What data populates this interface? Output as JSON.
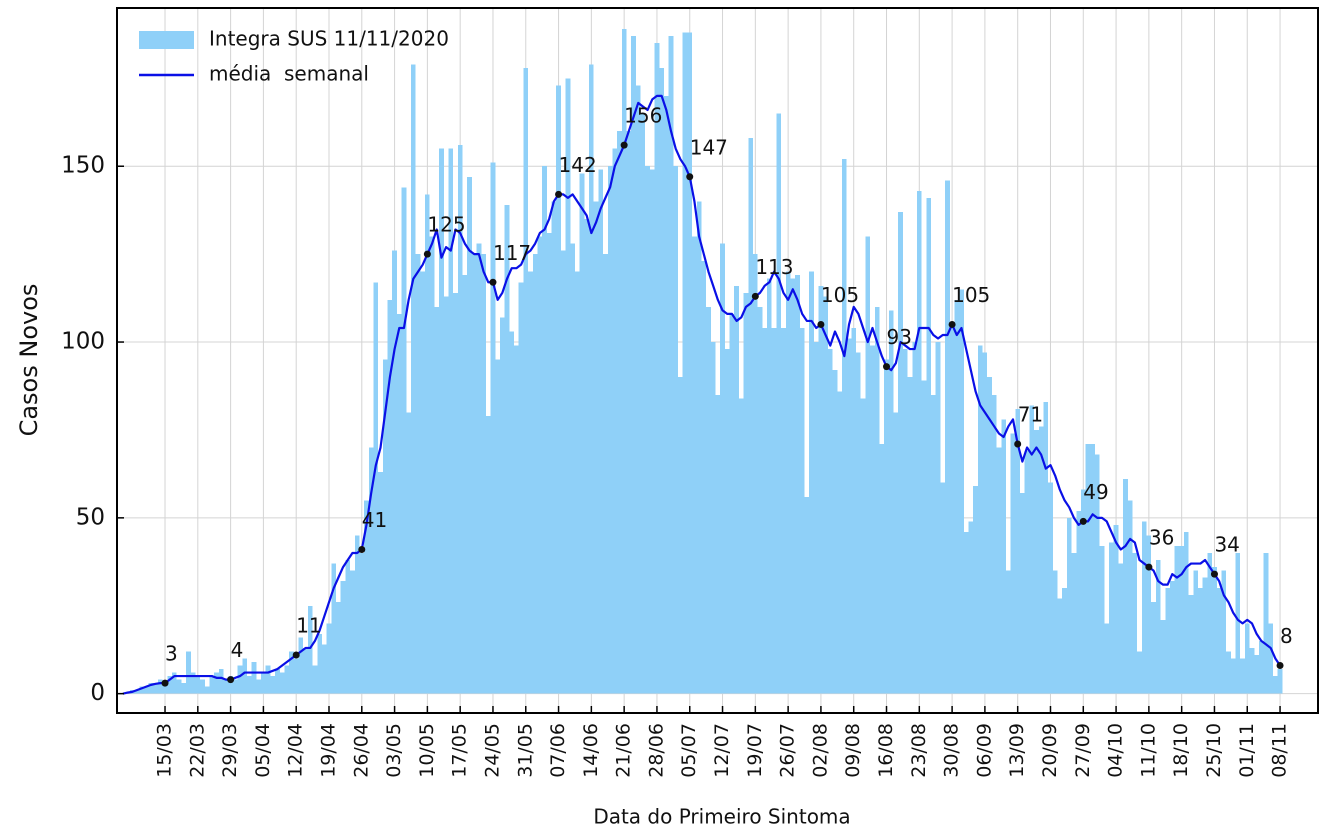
{
  "chart_data": {
    "type": "bar",
    "xlabel": "Data do Primeiro Sintoma",
    "ylabel": "Casos Novos",
    "legend": "upper left",
    "grid": true,
    "xlim": [
      64.75,
      321.1
    ],
    "ylim": [
      -5.5,
      195
    ],
    "yticks": [
      0,
      50,
      100,
      150
    ],
    "xticks": [
      {
        "value": 75,
        "label": "15/03"
      },
      {
        "value": 82,
        "label": "22/03"
      },
      {
        "value": 89,
        "label": "29/03"
      },
      {
        "value": 96,
        "label": "05/04"
      },
      {
        "value": 103,
        "label": "12/04"
      },
      {
        "value": 110,
        "label": "19/04"
      },
      {
        "value": 117,
        "label": "26/04"
      },
      {
        "value": 124,
        "label": "03/05"
      },
      {
        "value": 131,
        "label": "10/05"
      },
      {
        "value": 138,
        "label": "17/05"
      },
      {
        "value": 145,
        "label": "24/05"
      },
      {
        "value": 152,
        "label": "31/05"
      },
      {
        "value": 159,
        "label": "07/06"
      },
      {
        "value": 166,
        "label": "14/06"
      },
      {
        "value": 173,
        "label": "21/06"
      },
      {
        "value": 180,
        "label": "28/06"
      },
      {
        "value": 187,
        "label": "05/07"
      },
      {
        "value": 194,
        "label": "12/07"
      },
      {
        "value": 201,
        "label": "19/07"
      },
      {
        "value": 208,
        "label": "26/07"
      },
      {
        "value": 215,
        "label": "02/08"
      },
      {
        "value": 222,
        "label": "09/08"
      },
      {
        "value": 229,
        "label": "16/08"
      },
      {
        "value": 236,
        "label": "23/08"
      },
      {
        "value": 243,
        "label": "30/08"
      },
      {
        "value": 250,
        "label": "06/09"
      },
      {
        "value": 257,
        "label": "13/09"
      },
      {
        "value": 264,
        "label": "20/09"
      },
      {
        "value": 271,
        "label": "27/09"
      },
      {
        "value": 278,
        "label": "04/10"
      },
      {
        "value": 285,
        "label": "11/10"
      },
      {
        "value": 292,
        "label": "18/10"
      },
      {
        "value": 299,
        "label": "25/10"
      },
      {
        "value": 306,
        "label": "01/11"
      },
      {
        "value": 313,
        "label": "08/11"
      }
    ],
    "x": [
      66,
      67,
      68,
      69,
      70,
      71,
      72,
      73,
      74,
      75,
      76,
      77,
      78,
      79,
      80,
      81,
      82,
      83,
      84,
      85,
      86,
      87,
      88,
      89,
      90,
      91,
      92,
      93,
      94,
      95,
      96,
      97,
      98,
      99,
      100,
      101,
      102,
      103,
      104,
      105,
      106,
      107,
      108,
      109,
      110,
      111,
      112,
      113,
      114,
      115,
      116,
      117,
      118,
      119,
      120,
      121,
      122,
      123,
      124,
      125,
      126,
      127,
      128,
      129,
      130,
      131,
      132,
      133,
      134,
      135,
      136,
      137,
      138,
      139,
      140,
      141,
      142,
      143,
      144,
      145,
      146,
      147,
      148,
      149,
      150,
      151,
      152,
      153,
      154,
      155,
      156,
      157,
      158,
      159,
      160,
      161,
      162,
      163,
      164,
      165,
      166,
      167,
      168,
      169,
      170,
      171,
      172,
      173,
      174,
      175,
      176,
      177,
      178,
      179,
      180,
      181,
      182,
      183,
      184,
      185,
      186,
      187,
      188,
      189,
      190,
      191,
      192,
      193,
      194,
      195,
      196,
      197,
      198,
      199,
      200,
      201,
      202,
      203,
      204,
      205,
      206,
      207,
      208,
      209,
      210,
      211,
      212,
      213,
      214,
      215,
      216,
      217,
      218,
      219,
      220,
      221,
      222,
      223,
      224,
      225,
      226,
      227,
      228,
      229,
      230,
      231,
      232,
      233,
      234,
      235,
      236,
      237,
      238,
      239,
      240,
      241,
      242,
      243,
      244,
      245,
      246,
      247,
      248,
      249,
      250,
      251,
      252,
      253,
      254,
      255,
      256,
      257,
      258,
      259,
      260,
      261,
      262,
      263,
      264,
      265,
      266,
      267,
      268,
      269,
      270,
      271,
      272,
      273,
      274,
      275,
      276,
      277,
      278,
      279,
      280,
      281,
      282,
      283,
      284,
      285,
      286,
      287,
      288,
      289,
      290,
      291,
      292,
      293,
      294,
      295,
      296,
      297,
      298,
      299,
      300,
      301,
      302,
      303,
      304,
      305,
      306,
      307,
      308,
      309,
      310,
      311,
      312,
      313
    ],
    "series": [
      {
        "name": "Integra SUS 11/11/2020",
        "type": "bar",
        "color": "#8fd0f8",
        "values": [
          0,
          0,
          1,
          1,
          2,
          2,
          3,
          3,
          4,
          3,
          5,
          6,
          4,
          3,
          12,
          6,
          5,
          4,
          2,
          5,
          6,
          7,
          4,
          5,
          4,
          8,
          10,
          5,
          9,
          4,
          6,
          8,
          5,
          7,
          6,
          8,
          12,
          10,
          16,
          13,
          25,
          8,
          17,
          14,
          20,
          37,
          26,
          32,
          38,
          35,
          45,
          40,
          55,
          70,
          117,
          63,
          95,
          112,
          126,
          108,
          144,
          80,
          179,
          125,
          120,
          142,
          130,
          110,
          155,
          113,
          155,
          114,
          156,
          119,
          147,
          125,
          128,
          125,
          79,
          151,
          95,
          107,
          139,
          103,
          99,
          117,
          178,
          120,
          125,
          130,
          150,
          131,
          140,
          173,
          126,
          175,
          128,
          120,
          148,
          135,
          179,
          140,
          149,
          125,
          150,
          155,
          160,
          189,
          160,
          187,
          173,
          165,
          150,
          149,
          185,
          178,
          170,
          187,
          150,
          90,
          188,
          188,
          130,
          140,
          123,
          110,
          100,
          85,
          128,
          98,
          108,
          116,
          84,
          114,
          158,
          125,
          110,
          104,
          118,
          104,
          165,
          104,
          120,
          118,
          119,
          104,
          56,
          120,
          100,
          116,
          113,
          98,
          92,
          86,
          152,
          101,
          104,
          97,
          84,
          130,
          99,
          110,
          71,
          95,
          109,
          80,
          137,
          98,
          90,
          100,
          143,
          89,
          141,
          85,
          100,
          60,
          146,
          104,
          112,
          115,
          46,
          49,
          59,
          99,
          97,
          90,
          85,
          70,
          78,
          35,
          74,
          81,
          57,
          69,
          82,
          75,
          76,
          83,
          60,
          35,
          27,
          30,
          50,
          40,
          52,
          58,
          71,
          71,
          68,
          42,
          20,
          43,
          48,
          37,
          61,
          55,
          40,
          12,
          49,
          45,
          26,
          38,
          21,
          30,
          32,
          42,
          42,
          46,
          28,
          35,
          30,
          33,
          40,
          36,
          30,
          35,
          12,
          10,
          40,
          10,
          20,
          13,
          11,
          15,
          40,
          20,
          5,
          7
        ]
      },
      {
        "name": "média  semanal",
        "type": "line",
        "color": "#0a10e6",
        "values": [
          0,
          0.3,
          0.5,
          1,
          1.5,
          2,
          2.5,
          2.8,
          3,
          3,
          4,
          5,
          5,
          5,
          5,
          5,
          5,
          5,
          5,
          5,
          4.5,
          4.5,
          4,
          4,
          4.5,
          5,
          6,
          6,
          6,
          6,
          6,
          6,
          6.5,
          7,
          8,
          9,
          10,
          11,
          12,
          13,
          13,
          15,
          18,
          22,
          26,
          30,
          33,
          36,
          38,
          40,
          40,
          41,
          48,
          57,
          65,
          70,
          80,
          90,
          98,
          104,
          104,
          112,
          118,
          120,
          122,
          125,
          128,
          132,
          124,
          127,
          126,
          132,
          131,
          128,
          126,
          125,
          125,
          120,
          117,
          117,
          112,
          114,
          118,
          121,
          121,
          122,
          125,
          126,
          128,
          131,
          132,
          135,
          140,
          142,
          142,
          141,
          142,
          140,
          138,
          136,
          131,
          134,
          138,
          141,
          144,
          150,
          153,
          156,
          160,
          164,
          168,
          167,
          166,
          169,
          170,
          170,
          166,
          160,
          155,
          152,
          150,
          147,
          140,
          130,
          125,
          120,
          116,
          112,
          109,
          108,
          108,
          106,
          107,
          110,
          111,
          113,
          114,
          116,
          117,
          120,
          118,
          114,
          112,
          115,
          112,
          108,
          106,
          106,
          104,
          105,
          102,
          99,
          103,
          100,
          96,
          105,
          110,
          108,
          104,
          100,
          104,
          100,
          96,
          93,
          92,
          94,
          100,
          99,
          98,
          98,
          104,
          104,
          104,
          102,
          101,
          102,
          102,
          105,
          102,
          104,
          98,
          92,
          86,
          82,
          80,
          78,
          76,
          74,
          73,
          76,
          78,
          71,
          66,
          70,
          68,
          70,
          68,
          64,
          65,
          62,
          58,
          55,
          53,
          50,
          48,
          49,
          49,
          51,
          50,
          50,
          49,
          46,
          43,
          41,
          42,
          44,
          43,
          38,
          37,
          36,
          35,
          32,
          31,
          31,
          34,
          33,
          34,
          36,
          37,
          37,
          37,
          38,
          36,
          34,
          32,
          28,
          26,
          23,
          21,
          20,
          21,
          20,
          17,
          15,
          14,
          13,
          10,
          8
        ]
      }
    ],
    "annotations": {
      "color": "#111111",
      "x": [
        75,
        89,
        103,
        117,
        131,
        145,
        159,
        173,
        187,
        201,
        215,
        229,
        243,
        257,
        271,
        285,
        299,
        313
      ],
      "values": [
        3,
        4,
        11,
        41,
        125,
        117,
        142,
        156,
        147,
        113,
        105,
        93,
        105,
        71,
        49,
        36,
        34,
        8
      ]
    }
  }
}
